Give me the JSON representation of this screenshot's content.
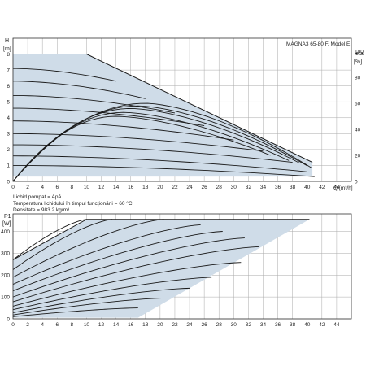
{
  "chart_data": [
    {
      "type": "line",
      "title": "MAGNA3 65-80 F, Model E",
      "ylabel": "H",
      "yunit": "[m]",
      "xlabel": "Q",
      "xunit": "[m³/h]",
      "y2label": "eta",
      "y2unit": "[%]",
      "xlim": [
        0,
        46
      ],
      "ylim": [
        0,
        9
      ],
      "y2lim": [
        0,
        110
      ],
      "x_ticks": [
        "0",
        "2",
        "4",
        "6",
        "8",
        "10",
        "12",
        "14",
        "16",
        "18",
        "20",
        "22",
        "24",
        "26",
        "28",
        "30",
        "32",
        "34",
        "36",
        "38",
        "40",
        "42",
        "44"
      ],
      "y_ticks": [
        "0",
        "1",
        "2",
        "3",
        "4",
        "5",
        "6",
        "7",
        "8"
      ],
      "y2_ticks": [
        "0",
        "20",
        "40",
        "60",
        "80",
        "100"
      ],
      "grid": true,
      "envelope": {
        "x": [
          0,
          10,
          40.7,
          40.7,
          0
        ],
        "y": [
          8.0,
          8.0,
          1.2,
          0.3,
          0.3
        ]
      },
      "pump_curves": [
        {
          "h0": 8.0,
          "q_max": 10,
          "end_h": 8.0
        },
        {
          "h0": 7.1,
          "q_max": 14,
          "end_h": 6.3
        },
        {
          "h0": 6.3,
          "q_max": 18,
          "end_h": 5.2
        },
        {
          "h0": 5.4,
          "q_max": 22,
          "end_h": 4.3
        },
        {
          "h0": 4.6,
          "q_max": 26,
          "end_h": 3.5
        },
        {
          "h0": 3.8,
          "q_max": 30,
          "end_h": 2.6
        },
        {
          "h0": 3.0,
          "q_max": 34,
          "end_h": 1.9
        },
        {
          "h0": 2.3,
          "q_max": 38,
          "end_h": 1.2
        },
        {
          "h0": 1.6,
          "q_max": 40,
          "end_h": 0.6
        },
        {
          "h0": 1.0,
          "q_max": 41,
          "end_h": 0.3
        }
      ],
      "efficiency_curves": [
        {
          "peak_x": 18,
          "peak_eta": 60,
          "end_x": 40.7,
          "end_eta": 10
        },
        {
          "peak_x": 17,
          "peak_eta": 58,
          "end_x": 40.0,
          "end_eta": 12
        },
        {
          "peak_x": 16,
          "peak_eta": 56,
          "end_x": 39.0,
          "end_eta": 14
        },
        {
          "peak_x": 15,
          "peak_eta": 53,
          "end_x": 37.5,
          "end_eta": 16
        },
        {
          "peak_x": 14,
          "peak_eta": 50,
          "end_x": 35.0,
          "end_eta": 20
        }
      ],
      "fluid_info": [
        "Lichid pompat = Apă",
        "Temperatura lichidului în timpul funcționării = 60 °C",
        "Densitate = 983.2 kg/m³"
      ]
    },
    {
      "type": "line",
      "ylabel": "P1",
      "yunit": "[W]",
      "xlim": [
        0,
        46
      ],
      "ylim": [
        0,
        480
      ],
      "x_ticks": [
        "0",
        "2",
        "4",
        "6",
        "8",
        "10",
        "12",
        "14",
        "16",
        "18",
        "20",
        "22",
        "24",
        "26",
        "28",
        "30",
        "32",
        "34",
        "36",
        "38",
        "40",
        "42",
        "44"
      ],
      "y_ticks": [
        "0",
        "100",
        "200",
        "300",
        "400"
      ],
      "grid": true,
      "envelope": {
        "x": [
          0,
          10,
          40.3,
          17,
          0
        ],
        "y": [
          270,
          455,
          455,
          5,
          5
        ]
      },
      "power_curves": [
        {
          "x0": 0,
          "p0": 270,
          "x1": 10,
          "p1": 455
        },
        {
          "x0": 0,
          "p0": 225,
          "x1": 13.5,
          "p1": 455
        },
        {
          "x0": 0,
          "p0": 190,
          "x1": 20.5,
          "p1": 455
        },
        {
          "x0": 0,
          "p0": 158,
          "x1": 25.5,
          "p1": 430
        },
        {
          "x0": 0,
          "p0": 128,
          "x1": 28.5,
          "p1": 400
        },
        {
          "x0": 0,
          "p0": 100,
          "x1": 31.5,
          "p1": 370
        },
        {
          "x0": 0,
          "p0": 78,
          "x1": 33.5,
          "p1": 330
        },
        {
          "x0": 0,
          "p0": 58,
          "x1": 31.0,
          "p1": 258
        },
        {
          "x0": 0,
          "p0": 42,
          "x1": 27.0,
          "p1": 190
        },
        {
          "x0": 0,
          "p0": 28,
          "x1": 24.0,
          "p1": 140
        },
        {
          "x0": 0,
          "p0": 18,
          "x1": 20.5,
          "p1": 95
        },
        {
          "x0": 0,
          "p0": 10,
          "x1": 17.0,
          "p1": 50
        }
      ],
      "max_curve": {
        "x": [
          0,
          10,
          20,
          30,
          40.3
        ],
        "y": [
          270,
          455,
          455,
          455,
          455
        ]
      }
    }
  ],
  "colors": {
    "fill": "#cfdce8",
    "curve": "#1a1a1a",
    "grid": "#aaaaaa",
    "axis": "#333333",
    "text": "#222222"
  }
}
